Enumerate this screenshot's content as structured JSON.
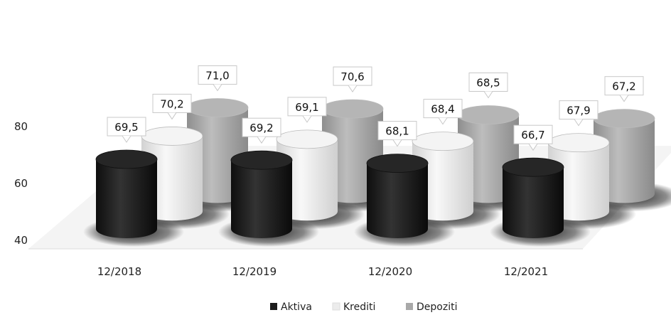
{
  "chart_data": {
    "type": "bar",
    "style": "3d-cylinder",
    "title": "",
    "xlabel": "",
    "ylabel": "",
    "categories": [
      "12/2018",
      "12/2019",
      "12/2020",
      "12/2021"
    ],
    "series": [
      {
        "name": "Aktiva",
        "values": [
          69.5,
          69.2,
          68.1,
          66.7
        ],
        "labels": [
          "69,5",
          "69,2",
          "68,1",
          "66,7"
        ],
        "color": "#1c1c1c"
      },
      {
        "name": "Krediti",
        "values": [
          70.2,
          69.1,
          68.4,
          67.9
        ],
        "labels": [
          "70,2",
          "69,1",
          "68,4",
          "67,9"
        ],
        "color": "#ececec"
      },
      {
        "name": "Depoziti",
        "values": [
          71.0,
          70.6,
          68.5,
          67.2
        ],
        "labels": [
          "71,0",
          "70,6",
          "68,5",
          "67,2"
        ],
        "color": "#a9a9a9"
      }
    ],
    "yticks": [
      "40",
      "60",
      "80"
    ],
    "ylim": [
      40,
      100
    ],
    "legend_position": "bottom",
    "grid": false
  }
}
